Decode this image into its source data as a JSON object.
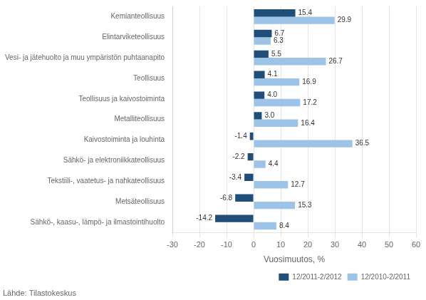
{
  "chart_data": {
    "type": "bar",
    "orientation": "horizontal",
    "categories": [
      "Kemianteollisuus",
      "Elintarviketeollisuus",
      "Vesi- ja jätehuolto ja muu ympäristön puhtaanapito",
      "Teollisuus",
      "Teollisuus ja kaivostoiminta",
      "Metalliteollisuus",
      "Kaivostoiminta ja louhinta",
      "Sähkö- ja elektroniikkateollisuus",
      "Tekstiili-, vaatetus- ja nahkateollisuus",
      "Metsäteollisuus",
      "Sähkö-, kaasu-, lämpö- ja ilmastointihuolto"
    ],
    "series": [
      {
        "name": "12/2011-2/2012",
        "color": "#1F4E79",
        "values": [
          15.4,
          6.7,
          5.5,
          4.1,
          4.0,
          3.0,
          -1.4,
          -2.2,
          -3.4,
          -6.8,
          -14.2
        ],
        "value_labels": [
          "15.4",
          "6.7",
          "5.5",
          "4.1",
          "4.0",
          "3.0",
          "-1.4",
          "-2.2",
          "-3.4",
          "-6.8",
          "-14.2"
        ]
      },
      {
        "name": "12/2010-2/2011",
        "color": "#9DC3E6",
        "values": [
          29.9,
          6.3,
          26.7,
          16.9,
          17.2,
          16.4,
          36.5,
          4.4,
          12.7,
          15.3,
          8.4
        ],
        "value_labels": [
          "29.9",
          "6.3",
          "26.7",
          "16.9",
          "17.2",
          "16.4",
          "36.5",
          "4.4",
          "12.7",
          "15.3",
          "8.4"
        ]
      }
    ],
    "xlabel": "Vuosimuutos, %",
    "xlim": [
      -30,
      60
    ],
    "xticks": [
      -30,
      -20,
      -10,
      0,
      10,
      20,
      30,
      40,
      50,
      60
    ],
    "grid": true,
    "legend": "lower right",
    "data_labels": true,
    "source": "Lähde: Tilastokeskus"
  }
}
